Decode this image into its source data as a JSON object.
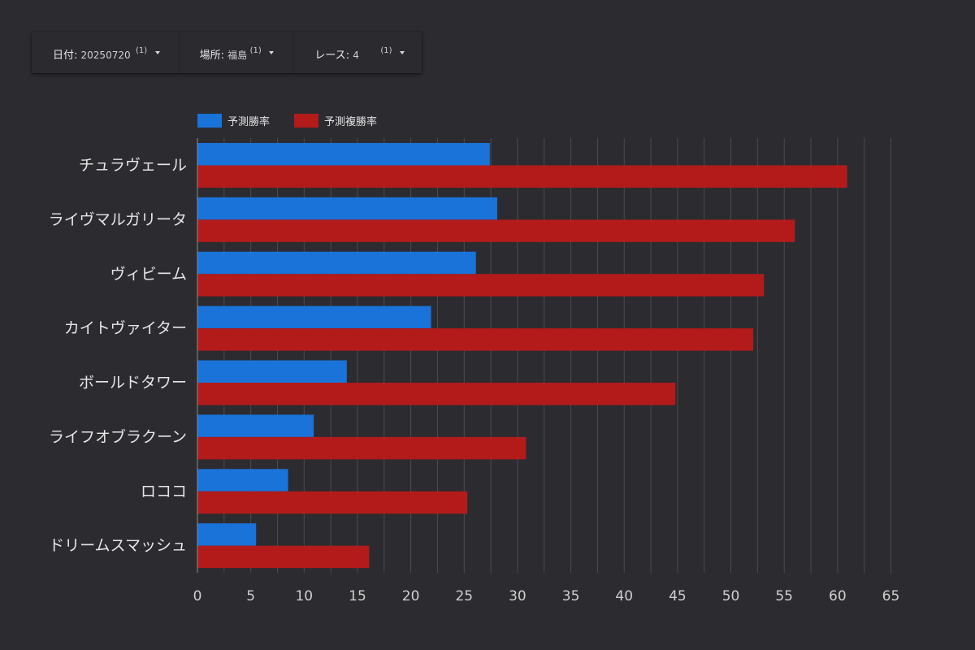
{
  "filters": [
    {
      "label": "日付",
      "value": "20250720",
      "count": "(1)"
    },
    {
      "label": "場所",
      "value": "福島",
      "count": "(1)"
    },
    {
      "label": "レース",
      "value": "4",
      "count": "(1)"
    }
  ],
  "chart_data": {
    "type": "bar",
    "orientation": "horizontal",
    "categories": [
      "チュラヴェール",
      "ライヴマルガリータ",
      "ヴィビーム",
      "カイトヴァイター",
      "ボールドタワー",
      "ライフオブラクーン",
      "ロココ",
      "ドリームスマッシュ"
    ],
    "series": [
      {
        "name": "予測勝率",
        "color": "#1a73d9",
        "values": [
          27.4,
          28.1,
          26.1,
          21.9,
          14.0,
          10.9,
          8.5,
          5.5
        ]
      },
      {
        "name": "予測複勝率",
        "color": "#b31b1b",
        "values": [
          60.9,
          56.0,
          53.1,
          52.1,
          44.8,
          30.8,
          25.3,
          16.1
        ]
      }
    ],
    "xlim": [
      0,
      65
    ],
    "xticks": [
      0,
      5,
      10,
      15,
      20,
      25,
      30,
      35,
      40,
      45,
      50,
      55,
      60,
      65
    ],
    "grid": true,
    "legend": "top-left"
  }
}
